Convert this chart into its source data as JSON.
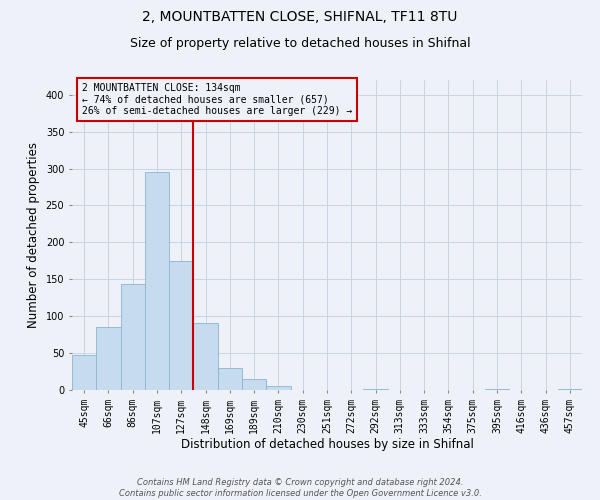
{
  "title": "2, MOUNTBATTEN CLOSE, SHIFNAL, TF11 8TU",
  "subtitle": "Size of property relative to detached houses in Shifnal",
  "xlabel": "Distribution of detached houses by size in Shifnal",
  "ylabel": "Number of detached properties",
  "footer_line1": "Contains HM Land Registry data © Crown copyright and database right 2024.",
  "footer_line2": "Contains public sector information licensed under the Open Government Licence v3.0.",
  "bar_labels": [
    "45sqm",
    "66sqm",
    "86sqm",
    "107sqm",
    "127sqm",
    "148sqm",
    "169sqm",
    "189sqm",
    "210sqm",
    "230sqm",
    "251sqm",
    "272sqm",
    "292sqm",
    "313sqm",
    "333sqm",
    "354sqm",
    "375sqm",
    "395sqm",
    "416sqm",
    "436sqm",
    "457sqm"
  ],
  "bar_values": [
    47,
    86,
    144,
    296,
    175,
    91,
    30,
    15,
    5,
    0,
    0,
    0,
    2,
    0,
    0,
    0,
    0,
    2,
    0,
    0,
    2
  ],
  "bar_color": "#c6dcee",
  "bar_edge_color": "#8ab4d4",
  "vline_color": "#cc0000",
  "annotation_box_text": "2 MOUNTBATTEN CLOSE: 134sqm\n← 74% of detached houses are smaller (657)\n26% of semi-detached houses are larger (229) →",
  "annotation_box_color": "#cc0000",
  "ylim": [
    0,
    420
  ],
  "yticks": [
    0,
    50,
    100,
    150,
    200,
    250,
    300,
    350,
    400
  ],
  "grid_color": "#c8d4e8",
  "background_color": "#eef2f8",
  "title_fontsize": 10,
  "subtitle_fontsize": 9,
  "axis_label_fontsize": 8.5,
  "tick_fontsize": 7,
  "footer_fontsize": 6
}
